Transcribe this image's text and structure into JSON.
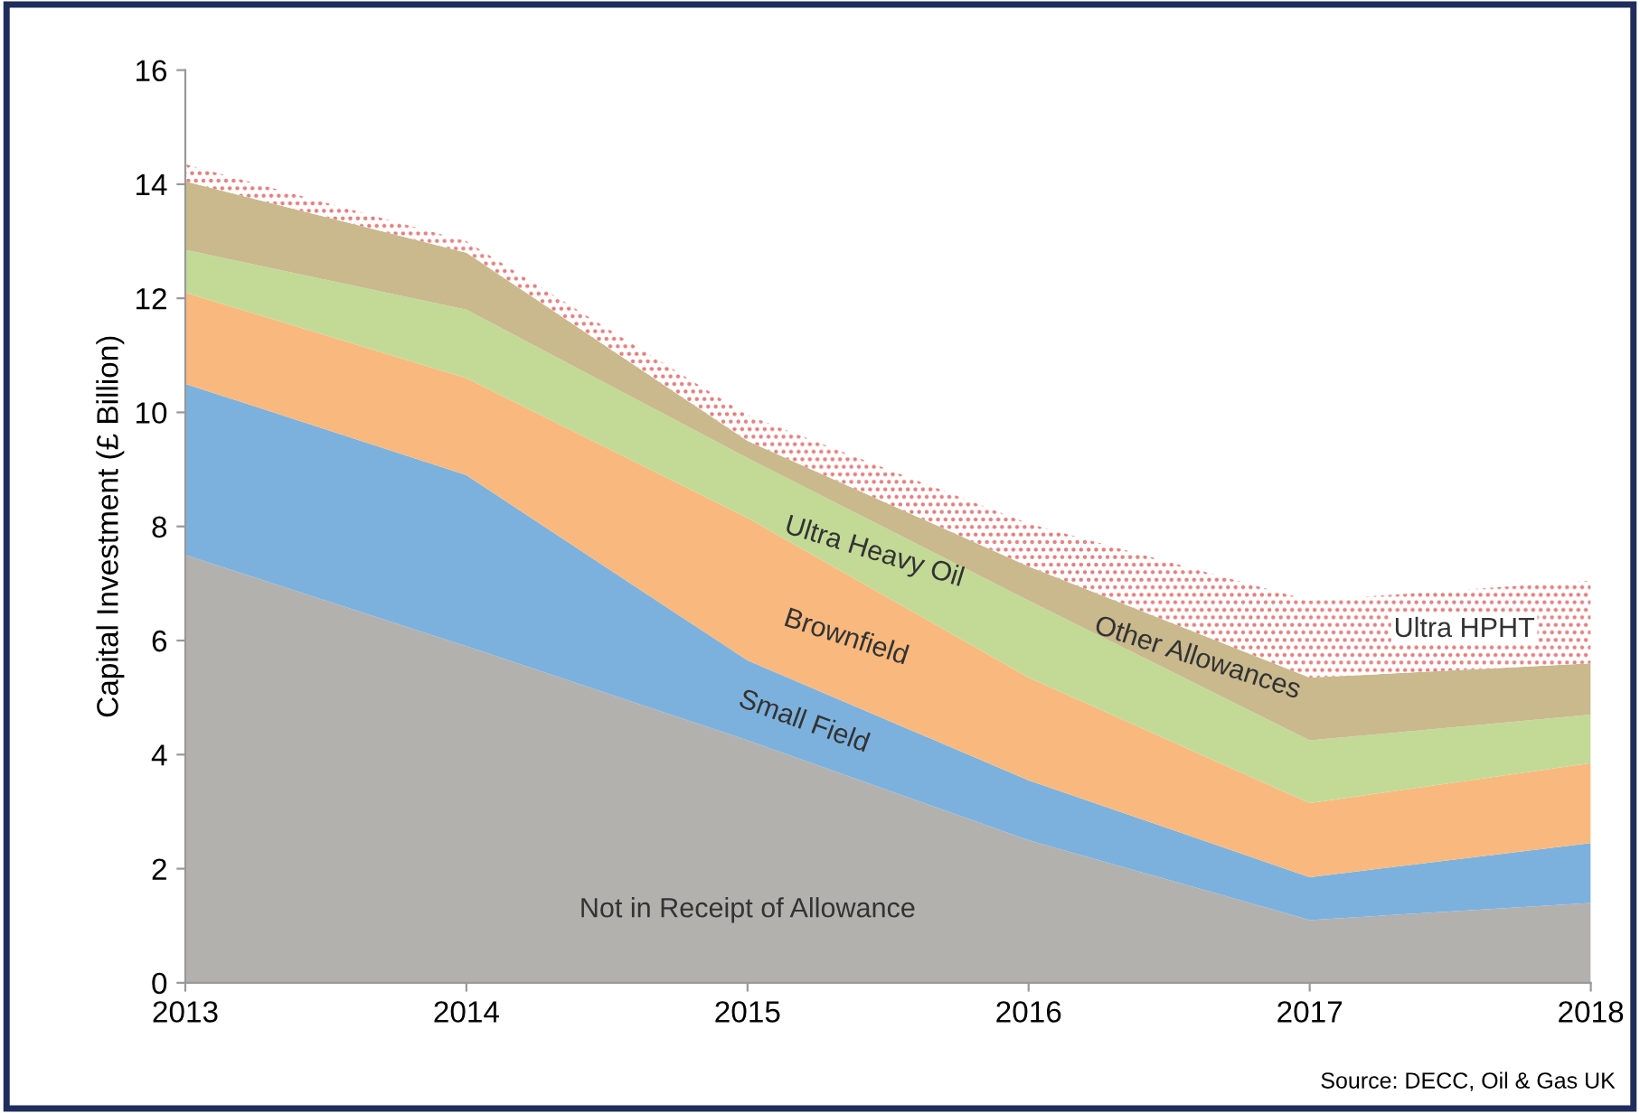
{
  "chart_data": {
    "type": "area",
    "stacked": true,
    "ylabel": "Capital Investment (£ Billion)",
    "x": [
      2013,
      2014,
      2015,
      2016,
      2017,
      2018
    ],
    "xlim": [
      2013,
      2018
    ],
    "xticks": [
      2013,
      2014,
      2015,
      2016,
      2017,
      2018
    ],
    "ylim": [
      0,
      16
    ],
    "yticks": [
      0,
      2,
      4,
      6,
      8,
      10,
      12,
      14,
      16
    ],
    "grid": false,
    "legend": false,
    "series": [
      {
        "name": "Not in Receipt of Allowance",
        "color": "#b3b1ae",
        "values": [
          7.5,
          5.9,
          4.25,
          2.5,
          1.1,
          1.4
        ]
      },
      {
        "name": "Small Field",
        "color": "#7db1dd",
        "values": [
          3.0,
          3.0,
          1.4,
          1.05,
          0.75,
          1.05
        ]
      },
      {
        "name": "Brownfield",
        "color": "#f9b97e",
        "values": [
          1.6,
          1.7,
          2.5,
          1.8,
          1.3,
          1.4
        ]
      },
      {
        "name": "Ultra Heavy Oil",
        "color": "#c2da96",
        "values": [
          0.75,
          1.2,
          1.05,
          1.35,
          1.1,
          0.85
        ]
      },
      {
        "name": "Other Allowances",
        "color": "#c9b98d",
        "values": [
          1.2,
          1.0,
          0.3,
          0.6,
          1.1,
          0.9
        ]
      },
      {
        "name": "Ultra HPHT",
        "color": "#e07a7a",
        "values": [
          0.3,
          0.2,
          0.45,
          0.75,
          1.35,
          1.45
        ]
      }
    ],
    "annotations": [
      "Source: DECC, Oil & Gas UK"
    ]
  }
}
